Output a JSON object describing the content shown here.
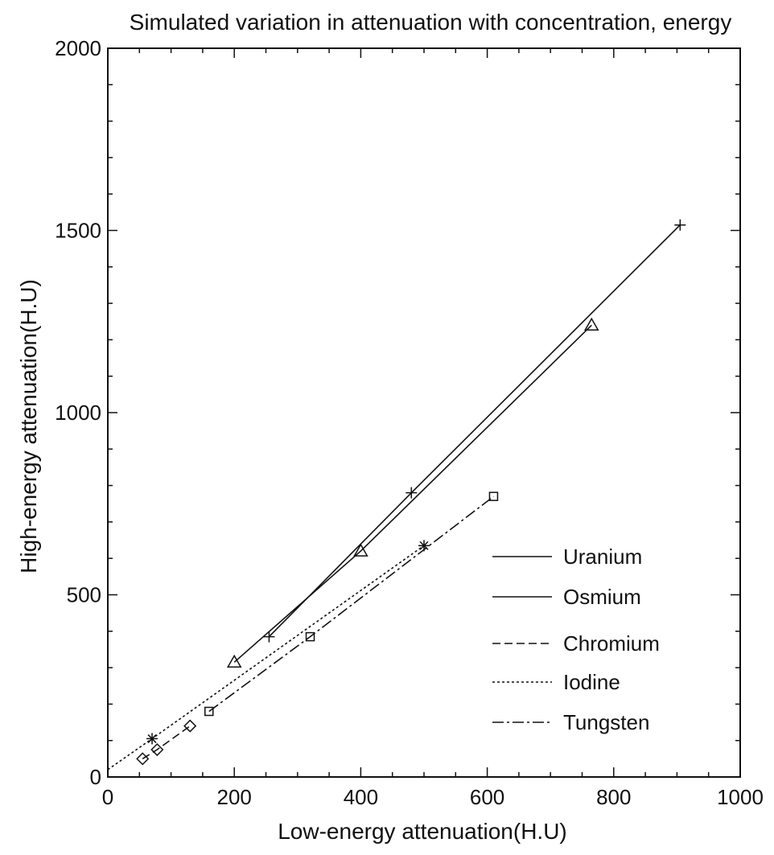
{
  "chart_data": {
    "type": "line",
    "title": "Simulated variation in attenuation with concentration, energy",
    "xlabel": "Low-energy attenuation(H.U)",
    "ylabel": "High-energy attenuation(H.U)",
    "xlim": [
      0,
      1000
    ],
    "ylim": [
      0,
      2000
    ],
    "xticks": [
      "0",
      "200",
      "400",
      "600",
      "800",
      "1000"
    ],
    "yticks": [
      "0",
      "500",
      "1000",
      "1500",
      "2000"
    ],
    "grid": false,
    "legend": "lower-right",
    "series": [
      {
        "name": "Uranium",
        "dash": "",
        "marker": "plus",
        "points": [
          [
            255,
            385
          ],
          [
            480,
            780
          ],
          [
            905,
            1515
          ]
        ]
      },
      {
        "name": "Osmium",
        "dash": "",
        "marker": "triangle",
        "points": [
          [
            200,
            315
          ],
          [
            400,
            620
          ],
          [
            765,
            1240
          ]
        ]
      },
      {
        "name": "Chromium",
        "dash": "10,5",
        "marker": "diamond",
        "points": [
          [
            55,
            50
          ],
          [
            78,
            75
          ],
          [
            130,
            140
          ]
        ]
      },
      {
        "name": "Iodine",
        "dash": "3,3",
        "marker": "asterisk",
        "points": [
          [
            0,
            20
          ],
          [
            70,
            105
          ],
          [
            500,
            635
          ]
        ]
      },
      {
        "name": "Tungsten",
        "dash": "14,4,3,4",
        "marker": "square",
        "points": [
          [
            160,
            180
          ],
          [
            320,
            385
          ],
          [
            610,
            770
          ]
        ]
      }
    ]
  }
}
